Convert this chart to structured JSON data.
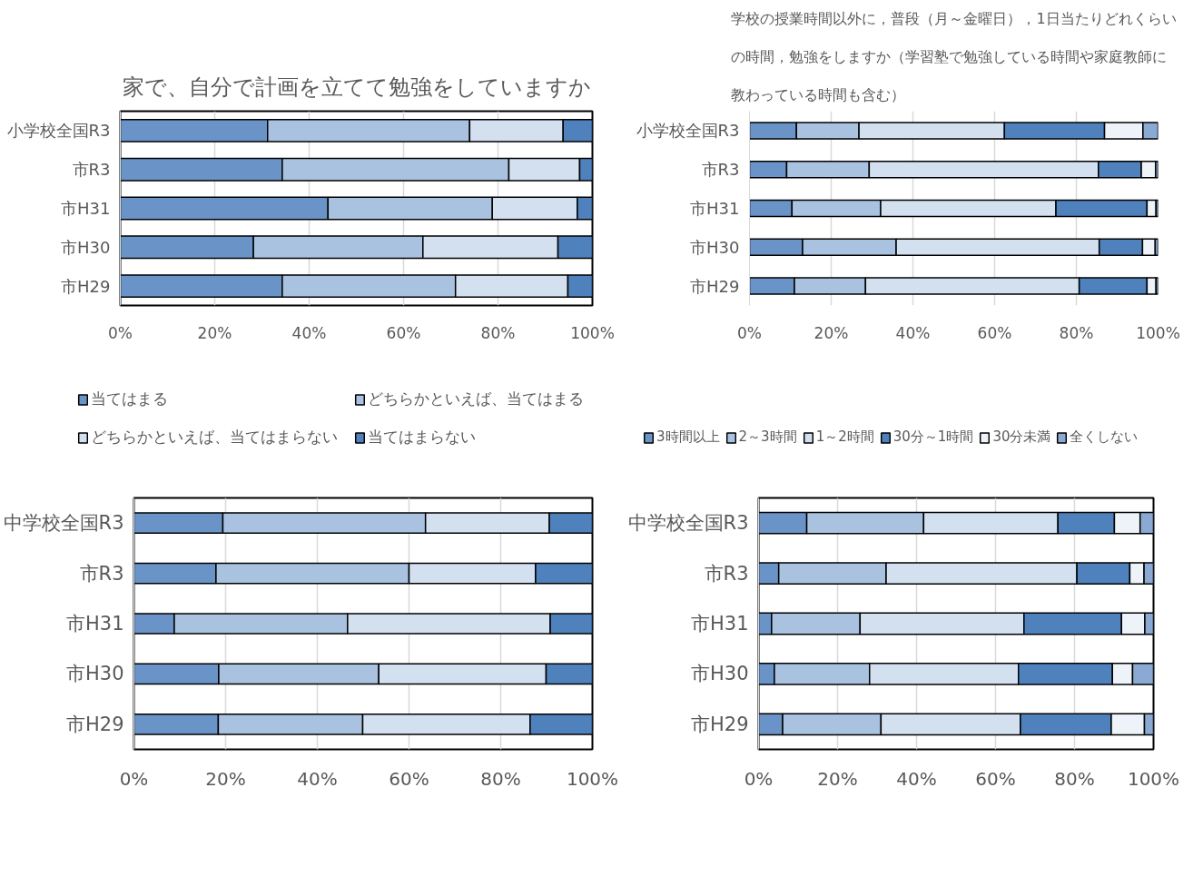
{
  "chart_data": [
    {
      "type": "bar",
      "orientation": "horizontal",
      "stacked": true,
      "title": "家で、自分で計画を立てて勉強をしていますか",
      "categories": [
        "小学校全国R3",
        "市R3",
        "市H31",
        "市H30",
        "市H29"
      ],
      "series": [
        {
          "name": "当てはまる",
          "color": "#6a94c8",
          "values": [
            31.2,
            34.3,
            44.0,
            28.2,
            34.3
          ]
        },
        {
          "name": "どちらかといえば、当てはまる",
          "color": "#a9c2e0",
          "values": [
            42.8,
            48.0,
            34.8,
            35.9,
            36.7
          ]
        },
        {
          "name": "どちらかといえば、当てはまらない",
          "color": "#d3e0f0",
          "values": [
            19.8,
            15.0,
            18.0,
            28.6,
            23.8
          ]
        },
        {
          "name": "当てはまらない",
          "color": "#4f81bd",
          "values": [
            6.2,
            2.7,
            3.2,
            7.3,
            5.2
          ]
        }
      ],
      "xlim": [
        0,
        100
      ],
      "xticks": [
        {
          "value": 0,
          "label": "0%"
        },
        {
          "value": 20,
          "label": "20%"
        },
        {
          "value": 40,
          "label": "40%"
        },
        {
          "value": 60,
          "label": "60%"
        },
        {
          "value": 80,
          "label": "80%"
        },
        {
          "value": 100,
          "label": "100%"
        }
      ],
      "grid": "x",
      "legend": "bottom"
    },
    {
      "type": "bar",
      "orientation": "horizontal",
      "stacked": true,
      "title": "学校の授業時間以外に，普段（月～金曜日），1日当たりどれくらいの時間，勉強をしますか（学習塾で勉強している時間や家庭教師に教わっている時間も含む）",
      "categories": [
        "小学校全国R3",
        "市R3",
        "市H31",
        "市H30",
        "市H29"
      ],
      "series": [
        {
          "name": "3時間以上",
          "color": "#6a94c8",
          "values": [
            11.5,
            9.1,
            10.4,
            13.0,
            11.0
          ]
        },
        {
          "name": "2～3時間",
          "color": "#a9c2e0",
          "values": [
            15.3,
            20.2,
            21.7,
            22.9,
            17.4
          ]
        },
        {
          "name": "1～2時間",
          "color": "#d3e0f0",
          "values": [
            35.6,
            56.1,
            42.9,
            49.7,
            52.3
          ]
        },
        {
          "name": "30分～1時間",
          "color": "#4f81bd",
          "values": [
            24.5,
            10.5,
            22.3,
            10.6,
            16.6
          ]
        },
        {
          "name": "30分未満",
          "color": "#eef3f9",
          "values": [
            9.4,
            3.5,
            2.2,
            3.1,
            2.2
          ]
        },
        {
          "name": "全くしない",
          "color": "#8aaad4",
          "values": [
            3.7,
            0.6,
            0.5,
            0.7,
            0.5
          ]
        }
      ],
      "xlim": [
        0,
        100
      ],
      "xticks": [
        {
          "value": 0,
          "label": "0%"
        },
        {
          "value": 20,
          "label": "20%"
        },
        {
          "value": 40,
          "label": "40%"
        },
        {
          "value": 60,
          "label": "60%"
        },
        {
          "value": 80,
          "label": "80%"
        },
        {
          "value": 100,
          "label": "100%"
        }
      ],
      "grid": "x",
      "legend": "bottom"
    },
    {
      "type": "bar",
      "orientation": "horizontal",
      "stacked": true,
      "categories": [
        "中学校全国R3",
        "市R3",
        "市H31",
        "市H30",
        "市H29"
      ],
      "series": [
        {
          "color": "#6a94c8",
          "values": [
            19.4,
            17.9,
            8.8,
            18.5,
            18.4
          ]
        },
        {
          "color": "#a9c2e0",
          "values": [
            44.2,
            42.1,
            37.8,
            34.9,
            31.5
          ]
        },
        {
          "color": "#d3e0f0",
          "values": [
            27.0,
            27.6,
            44.2,
            36.5,
            36.5
          ]
        },
        {
          "color": "#4f81bd",
          "values": [
            9.4,
            12.4,
            9.2,
            10.1,
            13.6
          ]
        }
      ],
      "xlim": [
        0,
        100
      ],
      "xticks": [
        {
          "value": 0,
          "label": "0%"
        },
        {
          "value": 20,
          "label": "20%"
        },
        {
          "value": 40,
          "label": "40%"
        },
        {
          "value": 60,
          "label": "60%"
        },
        {
          "value": 80,
          "label": "80%"
        },
        {
          "value": 100,
          "label": "100%"
        }
      ],
      "grid": "x"
    },
    {
      "type": "bar",
      "orientation": "horizontal",
      "stacked": true,
      "categories": [
        "中学校全国R3",
        "市R3",
        "市H31",
        "市H30",
        "市H29"
      ],
      "series": [
        {
          "color": "#6a94c8",
          "values": [
            12.2,
            5.1,
            3.3,
            4.0,
            6.1
          ]
        },
        {
          "color": "#a9c2e0",
          "values": [
            29.6,
            27.2,
            22.4,
            24.1,
            24.9
          ]
        },
        {
          "color": "#d3e0f0",
          "values": [
            34.0,
            48.3,
            41.5,
            37.7,
            35.3
          ]
        },
        {
          "color": "#4f81bd",
          "values": [
            14.3,
            13.4,
            24.7,
            23.8,
            23.0
          ]
        },
        {
          "color": "#eef3f9",
          "values": [
            6.5,
            3.6,
            5.9,
            5.1,
            8.4
          ]
        },
        {
          "color": "#8aaad4",
          "values": [
            3.4,
            2.4,
            2.2,
            5.3,
            2.3
          ]
        }
      ],
      "xlim": [
        0,
        100
      ],
      "xticks": [
        {
          "value": 0,
          "label": "0%"
        },
        {
          "value": 20,
          "label": "20%"
        },
        {
          "value": 40,
          "label": "40%"
        },
        {
          "value": 60,
          "label": "60%"
        },
        {
          "value": 80,
          "label": "80%"
        },
        {
          "value": 100,
          "label": "100%"
        }
      ],
      "grid": "x"
    }
  ]
}
